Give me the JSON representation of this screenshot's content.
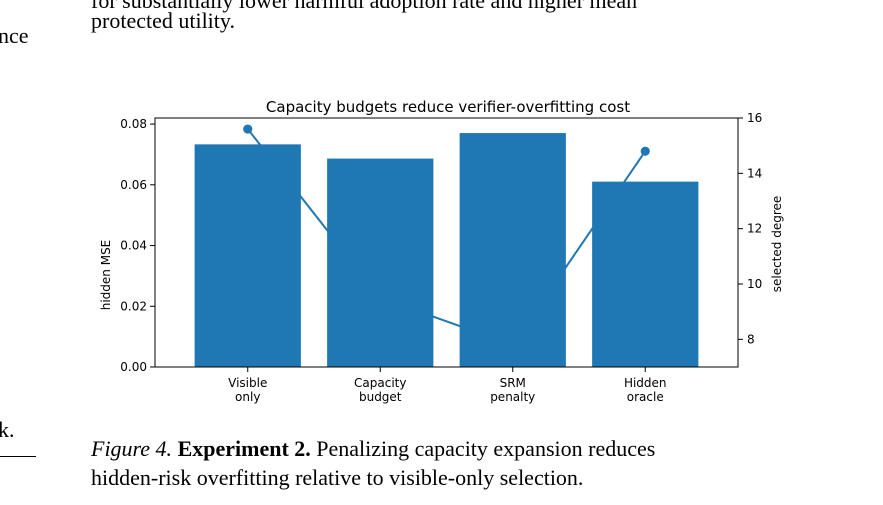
{
  "page": {
    "top_text_clipped": "for substantially lower harmful adoption rate and higher mean",
    "top_text": "protected utility.",
    "left_fragment_1": "nce",
    "left_fragment_2": "k."
  },
  "caption": {
    "label": "Figure 4.",
    "title": "Experiment 2.",
    "body_line1": "Penalizing capacity expansion reduces",
    "body_line2": "hidden-risk overfitting relative to visible-only selection."
  },
  "colors": {
    "bar": "#1f77b4",
    "line": "#1f77b4"
  },
  "chart_data": {
    "type": "bar",
    "title": "Capacity budgets reduce verifier-overfitting cost",
    "categories": [
      [
        "Visible",
        "only"
      ],
      [
        "Capacity",
        "budget"
      ],
      [
        "SRM",
        "penalty"
      ],
      [
        "Hidden",
        "oracle"
      ]
    ],
    "series": [
      {
        "values": [
          0.0733,
          0.0686,
          0.077,
          0.061
        ]
      },
      {
        "values": [
          15.6,
          9.5,
          7.8,
          14.8
        ],
        "axis": "right",
        "style": "line-markers"
      }
    ],
    "ylabel": "hidden MSE",
    "ylim": [
      0.0,
      0.082
    ],
    "yticks": [
      "0.00",
      "0.02",
      "0.04",
      "0.06",
      "0.08"
    ],
    "y2label": "selected degree",
    "y2lim": [
      7.0,
      16.0
    ],
    "y2ticks": [
      "8",
      "10",
      "12",
      "14",
      "16"
    ],
    "grid": false
  }
}
